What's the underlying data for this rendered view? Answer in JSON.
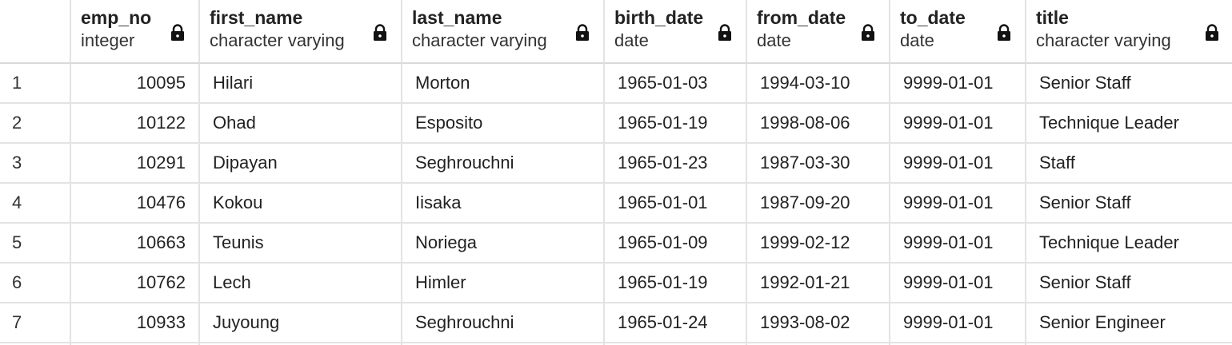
{
  "columns": [
    {
      "name": "emp_no",
      "type": "integer"
    },
    {
      "name": "first_name",
      "type": "character varying"
    },
    {
      "name": "last_name",
      "type": "character varying"
    },
    {
      "name": "birth_date",
      "type": "date"
    },
    {
      "name": "from_date",
      "type": "date"
    },
    {
      "name": "to_date",
      "type": "date"
    },
    {
      "name": "title",
      "type": "character varying"
    }
  ],
  "rows": [
    {
      "n": "1",
      "emp_no": "10095",
      "first_name": "Hilari",
      "last_name": "Morton",
      "birth_date": "1965-01-03",
      "from_date": "1994-03-10",
      "to_date": "9999-01-01",
      "title": "Senior Staff"
    },
    {
      "n": "2",
      "emp_no": "10122",
      "first_name": "Ohad",
      "last_name": "Esposito",
      "birth_date": "1965-01-19",
      "from_date": "1998-08-06",
      "to_date": "9999-01-01",
      "title": "Technique Leader"
    },
    {
      "n": "3",
      "emp_no": "10291",
      "first_name": "Dipayan",
      "last_name": "Seghrouchni",
      "birth_date": "1965-01-23",
      "from_date": "1987-03-30",
      "to_date": "9999-01-01",
      "title": "Staff"
    },
    {
      "n": "4",
      "emp_no": "10476",
      "first_name": "Kokou",
      "last_name": "Iisaka",
      "birth_date": "1965-01-01",
      "from_date": "1987-09-20",
      "to_date": "9999-01-01",
      "title": "Senior Staff"
    },
    {
      "n": "5",
      "emp_no": "10663",
      "first_name": "Teunis",
      "last_name": "Noriega",
      "birth_date": "1965-01-09",
      "from_date": "1999-02-12",
      "to_date": "9999-01-01",
      "title": "Technique Leader"
    },
    {
      "n": "6",
      "emp_no": "10762",
      "first_name": "Lech",
      "last_name": "Himler",
      "birth_date": "1965-01-19",
      "from_date": "1992-01-21",
      "to_date": "9999-01-01",
      "title": "Senior Staff"
    },
    {
      "n": "7",
      "emp_no": "10933",
      "first_name": "Juyoung",
      "last_name": "Seghrouchni",
      "birth_date": "1965-01-24",
      "from_date": "1993-08-02",
      "to_date": "9999-01-01",
      "title": "Senior Engineer"
    }
  ],
  "icons": {
    "column_lock": "lock-icon"
  }
}
